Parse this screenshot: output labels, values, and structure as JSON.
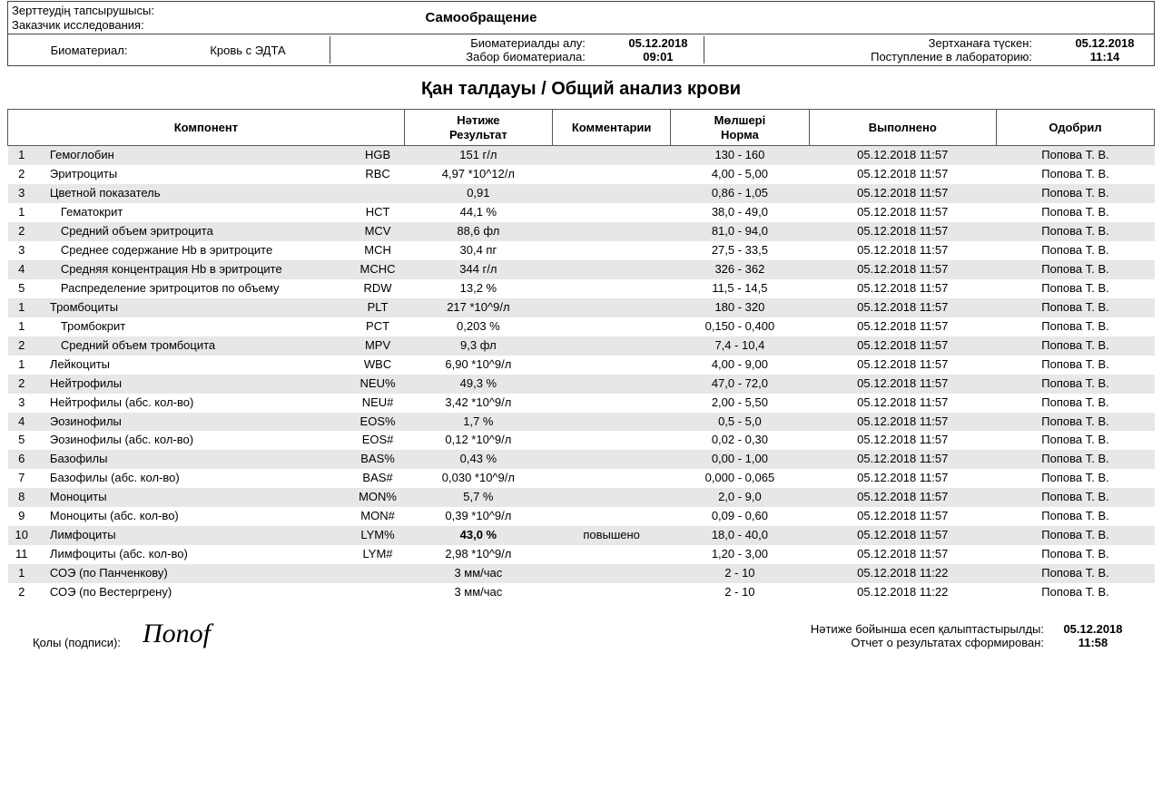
{
  "header": {
    "requester_label_kk": "Зерттеудің тапсырушысы:",
    "requester_label_ru": "Заказчик исследования:",
    "requester_value": "Самообращение",
    "biomaterial_label": "Биоматериал:",
    "biomaterial_value": "Кровь с ЭДТА",
    "collection_label_kk": "Биоматериалды алу:",
    "collection_label_ru": "Забор биоматериала:",
    "collection_date": "05.12.2018",
    "collection_time": "09:01",
    "receipt_label_kk": "Зертханаға түскен:",
    "receipt_label_ru": "Поступление в лабораторию:",
    "receipt_date": "05.12.2018",
    "receipt_time": "11:14"
  },
  "title": "Қан  талдауы / Общий анализ крови",
  "columns": {
    "component": "Компонент",
    "result_kk": "Нәтиже",
    "result_ru": "Результат",
    "comment": "Комментарии",
    "norm_kk": "Мөлшері",
    "norm_ru": "Норма",
    "performed": "Выполнено",
    "approved": "Одобрил"
  },
  "rows": [
    {
      "num": "1",
      "name": "Гемоглобин",
      "code": "HGB",
      "result": "151 г/л",
      "comment": "",
      "norm": "130 - 160",
      "performed": "05.12.2018 11:57",
      "approved": "Попова Т. В.",
      "shade": true,
      "indent": 1,
      "bold": false
    },
    {
      "num": "2",
      "name": "Эритроциты",
      "code": "RBC",
      "result": "4,97 *10^12/л",
      "comment": "",
      "norm": "4,00 - 5,00",
      "performed": "05.12.2018 11:57",
      "approved": "Попова Т. В.",
      "shade": false,
      "indent": 1,
      "bold": false
    },
    {
      "num": "3",
      "name": "Цветной показатель",
      "code": "",
      "result": "0,91",
      "comment": "",
      "norm": "0,86 - 1,05",
      "performed": "05.12.2018 11:57",
      "approved": "Попова Т. В.",
      "shade": true,
      "indent": 1,
      "bold": false
    },
    {
      "num": "1",
      "name": "Гематокрит",
      "code": "HCT",
      "result": "44,1 %",
      "comment": "",
      "norm": "38,0 - 49,0",
      "performed": "05.12.2018 11:57",
      "approved": "Попова Т. В.",
      "shade": false,
      "indent": 2,
      "bold": false
    },
    {
      "num": "2",
      "name": "Средний объем эритроцита",
      "code": "MCV",
      "result": "88,6 фл",
      "comment": "",
      "norm": "81,0 - 94,0",
      "performed": "05.12.2018 11:57",
      "approved": "Попова Т. В.",
      "shade": true,
      "indent": 2,
      "bold": false
    },
    {
      "num": "3",
      "name": "Среднее содержание Hb в эритроците",
      "code": "MCH",
      "result": "30,4 пг",
      "comment": "",
      "norm": "27,5 - 33,5",
      "performed": "05.12.2018 11:57",
      "approved": "Попова Т. В.",
      "shade": false,
      "indent": 2,
      "bold": false
    },
    {
      "num": "4",
      "name": "Средняя концентрация Hb в эритроците",
      "code": "MCHC",
      "result": "344 г/л",
      "comment": "",
      "norm": "326 - 362",
      "performed": "05.12.2018 11:57",
      "approved": "Попова Т. В.",
      "shade": true,
      "indent": 2,
      "bold": false
    },
    {
      "num": "5",
      "name": "Распределение эритроцитов по объему",
      "code": "RDW",
      "result": "13,2 %",
      "comment": "",
      "norm": "11,5 - 14,5",
      "performed": "05.12.2018 11:57",
      "approved": "Попова Т. В.",
      "shade": false,
      "indent": 2,
      "bold": false
    },
    {
      "num": "1",
      "name": "Тромбоциты",
      "code": "PLT",
      "result": "217 *10^9/л",
      "comment": "",
      "norm": "180 - 320",
      "performed": "05.12.2018 11:57",
      "approved": "Попова Т. В.",
      "shade": true,
      "indent": 1,
      "bold": false
    },
    {
      "num": "1",
      "name": "Тромбокрит",
      "code": "PCT",
      "result": "0,203 %",
      "comment": "",
      "norm": "0,150 - 0,400",
      "performed": "05.12.2018 11:57",
      "approved": "Попова Т. В.",
      "shade": false,
      "indent": 2,
      "bold": false
    },
    {
      "num": "2",
      "name": "Средний объем тромбоцита",
      "code": "MPV",
      "result": "9,3 фл",
      "comment": "",
      "norm": "7,4 - 10,4",
      "performed": "05.12.2018 11:57",
      "approved": "Попова Т. В.",
      "shade": true,
      "indent": 2,
      "bold": false
    },
    {
      "num": "1",
      "name": "Лейкоциты",
      "code": "WBC",
      "result": "6,90 *10^9/л",
      "comment": "",
      "norm": "4,00 - 9,00",
      "performed": "05.12.2018 11:57",
      "approved": "Попова Т. В.",
      "shade": false,
      "indent": 1,
      "bold": false
    },
    {
      "num": "2",
      "name": "Нейтрофилы",
      "code": "NEU%",
      "result": "49,3 %",
      "comment": "",
      "norm": "47,0 - 72,0",
      "performed": "05.12.2018 11:57",
      "approved": "Попова Т. В.",
      "shade": true,
      "indent": 1,
      "bold": false
    },
    {
      "num": "3",
      "name": "Нейтрофилы (абс. кол-во)",
      "code": "NEU#",
      "result": "3,42 *10^9/л",
      "comment": "",
      "norm": "2,00 - 5,50",
      "performed": "05.12.2018 11:57",
      "approved": "Попова Т. В.",
      "shade": false,
      "indent": 1,
      "bold": false
    },
    {
      "num": "4",
      "name": "Эозинофилы",
      "code": "EOS%",
      "result": "1,7 %",
      "comment": "",
      "norm": "0,5 - 5,0",
      "performed": "05.12.2018 11:57",
      "approved": "Попова Т. В.",
      "shade": true,
      "indent": 1,
      "bold": false
    },
    {
      "num": "5",
      "name": "Эозинофилы (абс. кол-во)",
      "code": "EOS#",
      "result": "0,12 *10^9/л",
      "comment": "",
      "norm": "0,02 - 0,30",
      "performed": "05.12.2018 11:57",
      "approved": "Попова Т. В.",
      "shade": false,
      "indent": 1,
      "bold": false
    },
    {
      "num": "6",
      "name": "Базофилы",
      "code": "BAS%",
      "result": "0,43 %",
      "comment": "",
      "norm": "0,00 - 1,00",
      "performed": "05.12.2018 11:57",
      "approved": "Попова Т. В.",
      "shade": true,
      "indent": 1,
      "bold": false
    },
    {
      "num": "7",
      "name": "Базофилы (абс. кол-во)",
      "code": "BAS#",
      "result": "0,030 *10^9/л",
      "comment": "",
      "norm": "0,000 - 0,065",
      "performed": "05.12.2018 11:57",
      "approved": "Попова Т. В.",
      "shade": false,
      "indent": 1,
      "bold": false
    },
    {
      "num": "8",
      "name": "Моноциты",
      "code": "MON%",
      "result": "5,7 %",
      "comment": "",
      "norm": "2,0 - 9,0",
      "performed": "05.12.2018 11:57",
      "approved": "Попова Т. В.",
      "shade": true,
      "indent": 1,
      "bold": false
    },
    {
      "num": "9",
      "name": "Моноциты (абс. кол-во)",
      "code": "MON#",
      "result": "0,39 *10^9/л",
      "comment": "",
      "norm": "0,09 - 0,60",
      "performed": "05.12.2018 11:57",
      "approved": "Попова Т. В.",
      "shade": false,
      "indent": 1,
      "bold": false
    },
    {
      "num": "10",
      "name": "Лимфоциты",
      "code": "LYM%",
      "result": "43,0 %",
      "comment": "повышено",
      "norm": "18,0 - 40,0",
      "performed": "05.12.2018 11:57",
      "approved": "Попова Т. В.",
      "shade": true,
      "indent": 1,
      "bold": true
    },
    {
      "num": "11",
      "name": "Лимфоциты (абс. кол-во)",
      "code": "LYM#",
      "result": "2,98 *10^9/л",
      "comment": "",
      "norm": "1,20 - 3,00",
      "performed": "05.12.2018 11:57",
      "approved": "Попова Т. В.",
      "shade": false,
      "indent": 1,
      "bold": false
    },
    {
      "num": "1",
      "name": "СОЭ (по Панченкову)",
      "code": "",
      "result": "3 мм/час",
      "comment": "",
      "norm": "2 - 10",
      "performed": "05.12.2018 11:22",
      "approved": "Попова Т. В.",
      "shade": true,
      "indent": 1,
      "bold": false
    },
    {
      "num": "2",
      "name": "СОЭ (по Вестергрену)",
      "code": "",
      "result": "3 мм/час",
      "comment": "",
      "norm": "2 - 10",
      "performed": "05.12.2018 11:22",
      "approved": "Попова Т. В.",
      "shade": false,
      "indent": 1,
      "bold": false
    }
  ],
  "footer": {
    "signature_label": "Қолы (подписи):",
    "signature_script": "Попоf",
    "report_label_kk": "Нәтиже бойынша есеп қалыптастырылды:",
    "report_label_ru": "Отчет о результатах сформирован:",
    "report_date": "05.12.2018",
    "report_time": "11:58"
  }
}
